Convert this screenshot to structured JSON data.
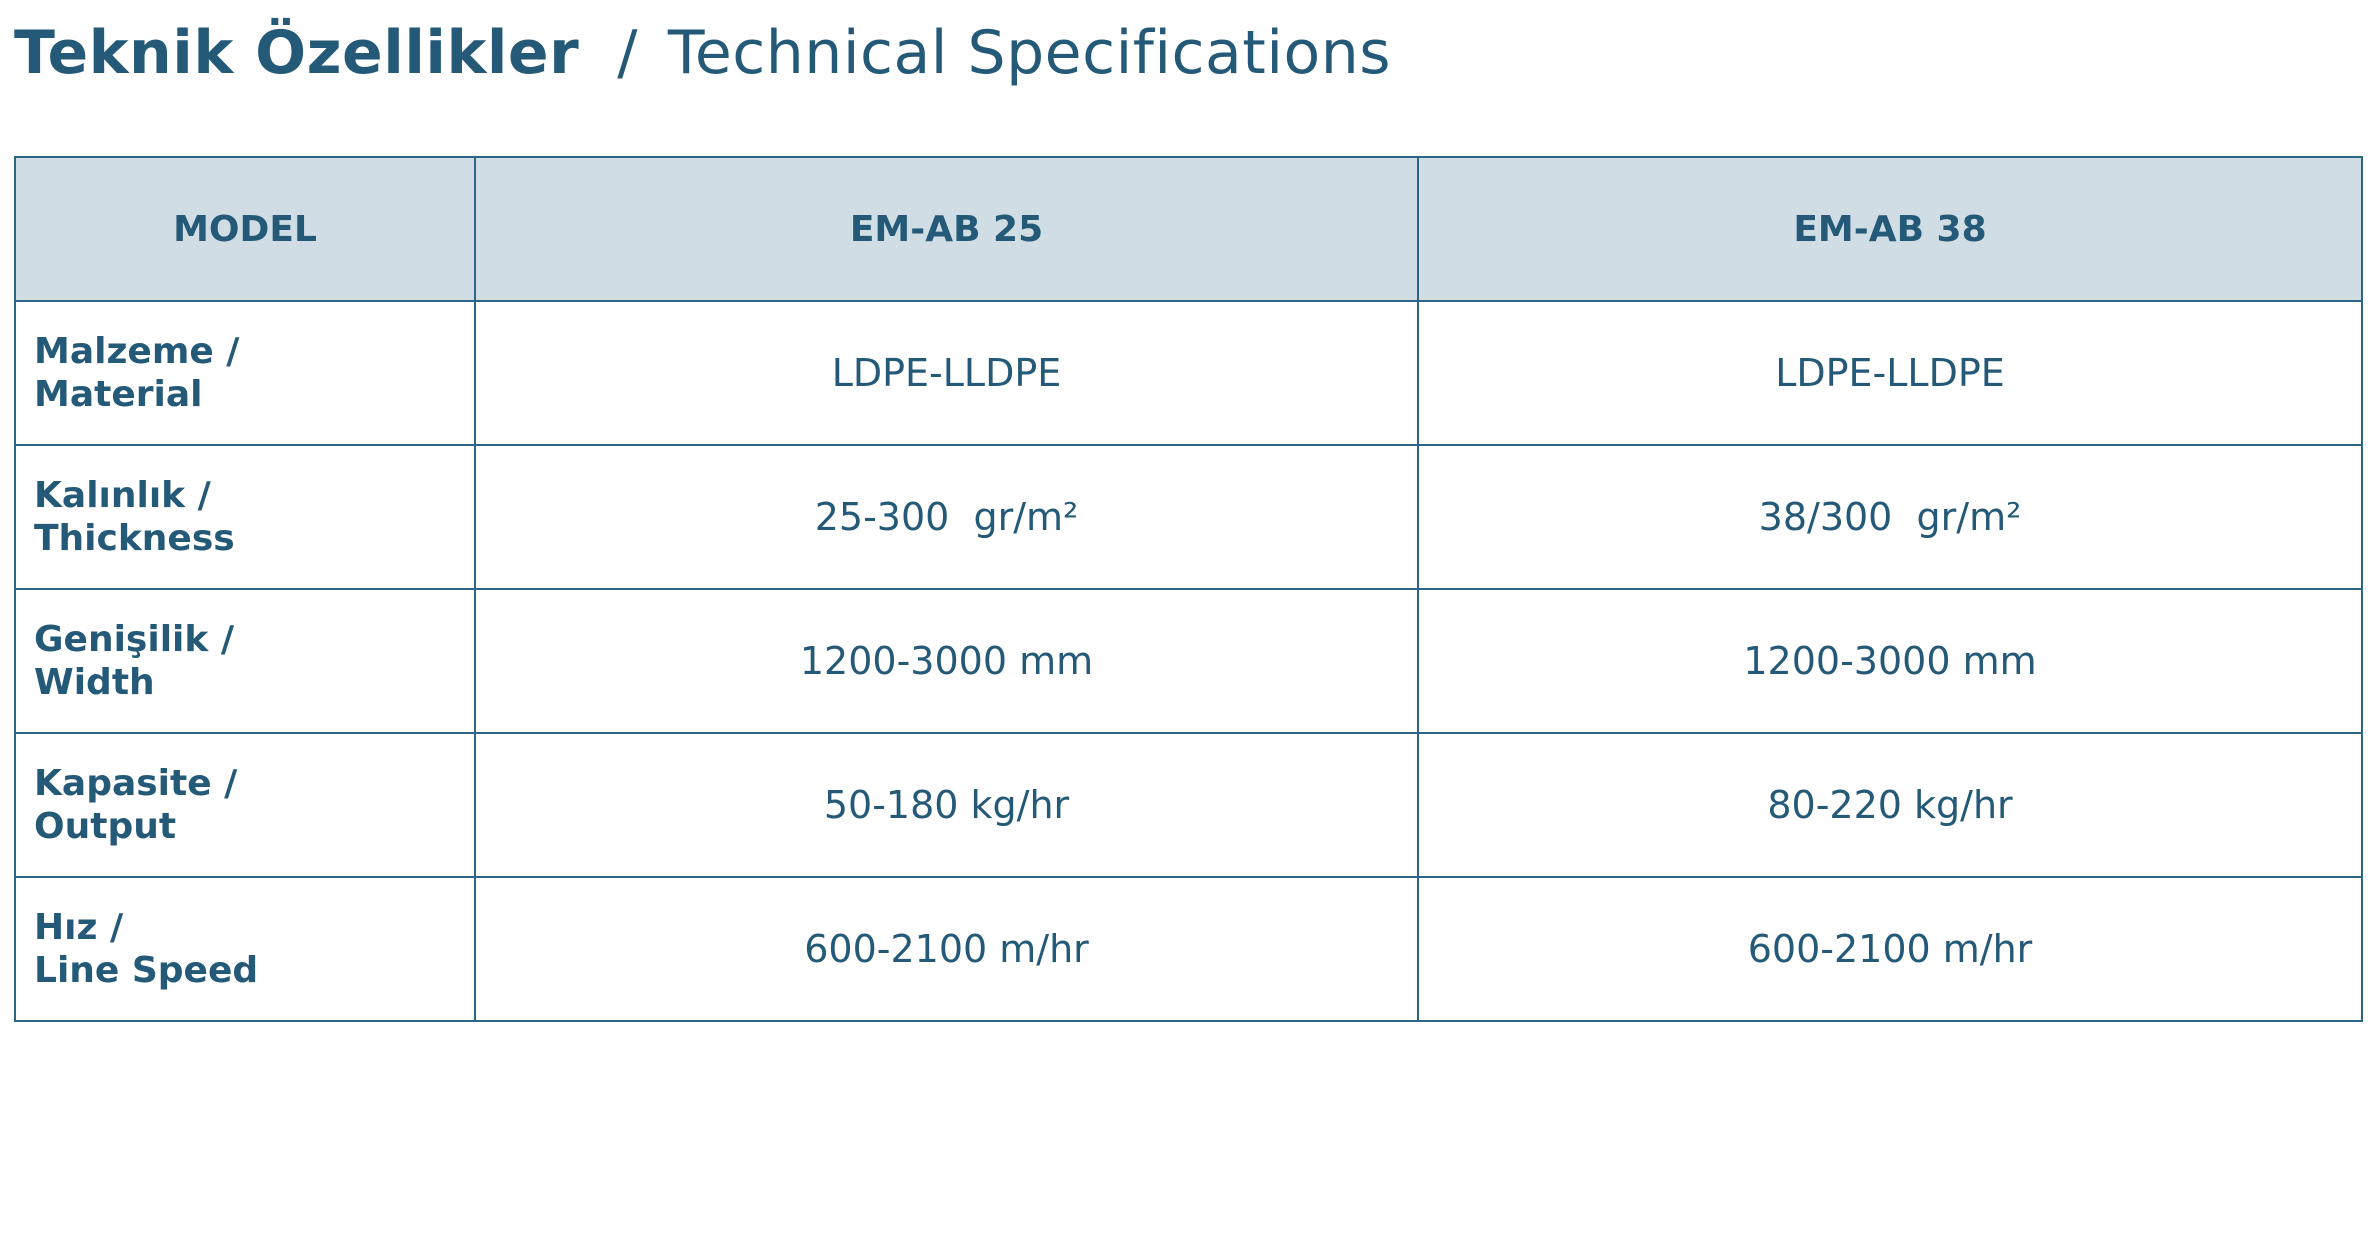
{
  "title": {
    "tr": "Teknik Özellikler",
    "separator": "/",
    "en": "Technical Specifications"
  },
  "table": {
    "headers": [
      "MODEL",
      "EM-AB 25",
      "EM-AB 38"
    ],
    "rows": [
      {
        "label_tr": "Malzeme /",
        "label_en": "Material",
        "values": [
          "LDPE-LLDPE",
          "LDPE-LLDPE"
        ]
      },
      {
        "label_tr": "Kalınlık /",
        "label_en": "Thickness",
        "values": [
          "25-300  gr/m²",
          "38/300  gr/m²"
        ]
      },
      {
        "label_tr": "Genişilik /",
        "label_en": "Width",
        "values": [
          "1200-3000 mm",
          "1200-3000 mm"
        ]
      },
      {
        "label_tr": "Kapasite /",
        "label_en": "Output",
        "values": [
          "50-180 kg/hr",
          "80-220 kg/hr"
        ]
      },
      {
        "label_tr": "Hız /",
        "label_en": "Line Speed",
        "values": [
          "600-2100 m/hr",
          "600-2100 m/hr"
        ]
      }
    ]
  },
  "colors": {
    "text": "#245a78",
    "border": "#2c6585",
    "header_bg": "#d1dde5"
  }
}
